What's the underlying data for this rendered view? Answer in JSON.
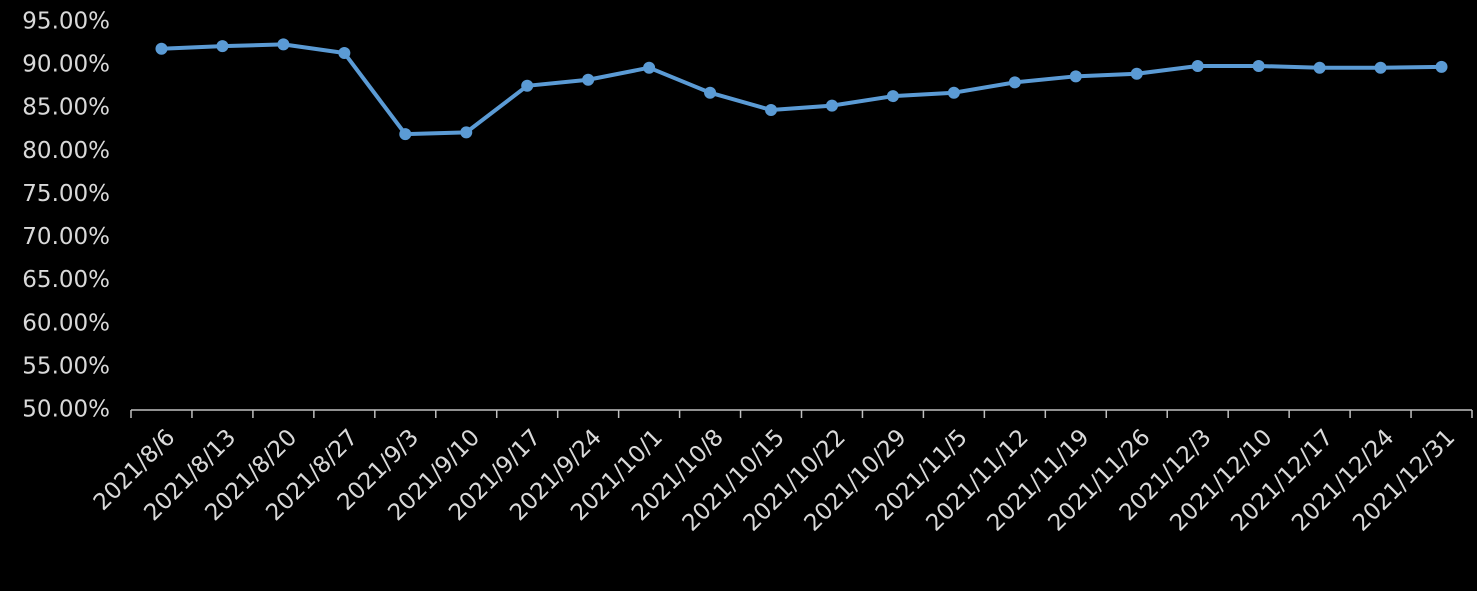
{
  "chart_data": {
    "type": "line",
    "categories": [
      "2021/8/6",
      "2021/8/13",
      "2021/8/20",
      "2021/8/27",
      "2021/9/3",
      "2021/9/10",
      "2021/9/17",
      "2021/9/24",
      "2021/10/1",
      "2021/10/8",
      "2021/10/15",
      "2021/10/22",
      "2021/10/29",
      "2021/11/5",
      "2021/11/12",
      "2021/11/19",
      "2021/11/26",
      "2021/12/3",
      "2021/12/10",
      "2021/12/17",
      "2021/12/24",
      "2021/12/31"
    ],
    "values": [
      91.9,
      92.2,
      92.4,
      91.4,
      82.0,
      82.2,
      87.6,
      88.3,
      89.7,
      86.8,
      84.8,
      85.3,
      86.4,
      86.8,
      88.0,
      88.7,
      89.0,
      89.9,
      89.9,
      89.7,
      89.7,
      89.8
    ],
    "color": "#5b9bd5",
    "ylim": [
      50,
      95
    ],
    "yticks": [
      {
        "value": 50,
        "label": "50.00%"
      },
      {
        "value": 55,
        "label": "55.00%"
      },
      {
        "value": 60,
        "label": "60.00%"
      },
      {
        "value": 65,
        "label": "65.00%"
      },
      {
        "value": 70,
        "label": "70.00%"
      },
      {
        "value": 75,
        "label": "75.00%"
      },
      {
        "value": 80,
        "label": "80.00%"
      },
      {
        "value": 85,
        "label": "85.00%"
      },
      {
        "value": 90,
        "label": "90.00%"
      },
      {
        "value": 95,
        "label": "95.00%"
      }
    ],
    "grid": false
  }
}
